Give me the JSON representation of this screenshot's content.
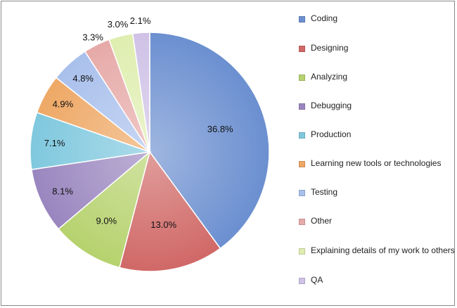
{
  "chart_data": {
    "type": "pie",
    "title": "",
    "start_angle_deg": 0,
    "direction": "clockwise",
    "slices": [
      {
        "label": "Coding",
        "value": 36.8,
        "display": "36.8%",
        "color": "#6b8fd0"
      },
      {
        "label": "Designing",
        "value": 13.0,
        "display": "13.0%",
        "color": "#d06866"
      },
      {
        "label": "Analyzing",
        "value": 9.0,
        "display": "9.0%",
        "color": "#b6d26e"
      },
      {
        "label": "Debugging",
        "value": 8.1,
        "display": "8.1%",
        "color": "#9a86bf"
      },
      {
        "label": "Production",
        "value": 7.1,
        "display": "7.1%",
        "color": "#7fc8de"
      },
      {
        "label": "Learning new tools or technologies",
        "value": 4.9,
        "display": "4.9%",
        "color": "#eea865"
      },
      {
        "label": "Testing",
        "value": 4.8,
        "display": "4.8%",
        "color": "#a9c0ec"
      },
      {
        "label": "Other",
        "value": 3.3,
        "display": "3.3%",
        "color": "#e6aaa8"
      },
      {
        "label": "Explaining details of my work to others",
        "value": 3.0,
        "display": "3.0%",
        "color": "#dfeeb0"
      },
      {
        "label": "QA",
        "value": 2.1,
        "display": "2.1%",
        "color": "#cfc2e6"
      }
    ],
    "legend_position": "right"
  }
}
